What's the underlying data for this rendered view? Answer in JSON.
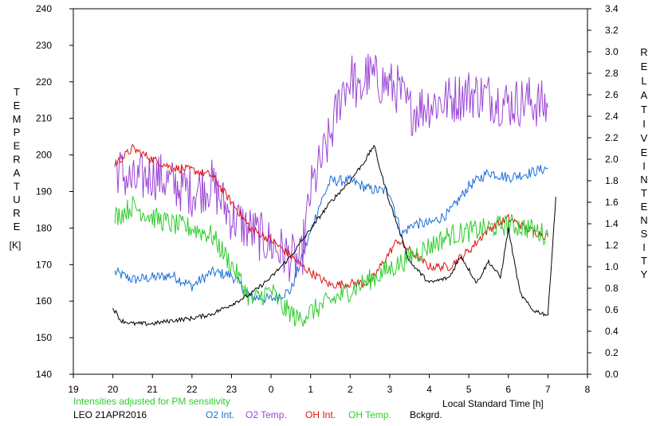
{
  "chart_data": {
    "type": "line",
    "title": "",
    "x_axis": {
      "label": "Local Standard Time [h]",
      "range": [
        19,
        32
      ],
      "tick_labels": [
        "19",
        "20",
        "21",
        "22",
        "23",
        "0",
        "1",
        "2",
        "3",
        "4",
        "5",
        "6",
        "7",
        "8"
      ]
    },
    "y_left": {
      "label_chars": [
        "T",
        "E",
        "M",
        "P",
        "E",
        "R",
        "A",
        "T",
        "U",
        "R",
        "E"
      ],
      "unit": "[K]",
      "range": [
        140,
        240
      ],
      "tick_labels": [
        "140",
        "150",
        "160",
        "170",
        "180",
        "190",
        "200",
        "210",
        "220",
        "230",
        "240"
      ]
    },
    "y_right": {
      "label_top_chars": [
        "R",
        "E",
        "L",
        "A",
        "T",
        "I",
        "V",
        "E"
      ],
      "label_bottom_chars": [
        "I",
        "N",
        "T",
        "E",
        "N",
        "S",
        "I",
        "T",
        "Y"
      ],
      "range": [
        0,
        3.4
      ],
      "tick_labels": [
        "0.0",
        "0.2",
        "0.4",
        "0.6",
        "0.8",
        "1.0",
        "1.2",
        "1.4",
        "1.6",
        "1.8",
        "2.0",
        "2.2",
        "2.4",
        "2.6",
        "2.8",
        "3.0",
        "3.2",
        "3.4"
      ]
    },
    "annotation": "Intensities adjusted for PM sensitivity",
    "station_label": "LEO 21APR2016",
    "grid": false,
    "legend_position": "bottom",
    "series": [
      {
        "name": "O2 Int.",
        "axis": "right",
        "color": "#1a6fd8",
        "noise": 0.05,
        "x": [
          20.05,
          20.5,
          21.0,
          21.5,
          22.0,
          22.5,
          23.0,
          23.5,
          24.0,
          24.5,
          24.8,
          25.2,
          25.5,
          26.0,
          26.5,
          27.0,
          27.3,
          27.6,
          28.0,
          28.5,
          29.0,
          29.5,
          30.0,
          30.5,
          31.0
        ],
        "y": [
          0.95,
          0.88,
          0.9,
          0.92,
          0.82,
          0.95,
          0.92,
          0.72,
          0.7,
          0.78,
          1.1,
          1.55,
          1.8,
          1.8,
          1.72,
          1.7,
          1.3,
          1.4,
          1.4,
          1.5,
          1.75,
          1.88,
          1.83,
          1.87,
          1.92
        ]
      },
      {
        "name": "O2 Temp.",
        "axis": "left",
        "color": "#9b45d6",
        "noise": 7,
        "x": [
          20.05,
          20.5,
          21.0,
          21.5,
          22.0,
          22.5,
          23.0,
          24.75,
          25.0,
          25.5,
          25.8,
          26.1,
          26.2,
          26.4,
          27.2,
          27.5,
          28.0,
          28.5,
          29.0,
          29.5,
          30.0,
          30.5,
          31.0
        ],
        "y": [
          197,
          192,
          195,
          192,
          190,
          192,
          183,
          170,
          190,
          205,
          218,
          222,
          215,
          222,
          218,
          212,
          214,
          215,
          217,
          216,
          214,
          215,
          213
        ]
      },
      {
        "name": "OH Int.",
        "axis": "right",
        "color": "#e01010",
        "noise": 0.04,
        "x": [
          20.05,
          20.5,
          21.0,
          21.5,
          22.0,
          22.5,
          23.0,
          23.5,
          24.0,
          24.5,
          24.8,
          25.2,
          25.5,
          26.2,
          26.5,
          27.2,
          27.5,
          28.0,
          28.5,
          29.0,
          29.5,
          30.0,
          30.5,
          31.0
        ],
        "y": [
          1.95,
          2.1,
          2.0,
          1.92,
          1.9,
          1.85,
          1.6,
          1.35,
          1.25,
          1.1,
          1.0,
          0.9,
          0.83,
          0.85,
          0.85,
          1.25,
          1.15,
          1.0,
          1.0,
          1.15,
          1.35,
          1.45,
          1.35,
          1.28
        ]
      },
      {
        "name": "OH Temp.",
        "axis": "left",
        "color": "#2ecc2e",
        "noise": 3,
        "x": [
          20.05,
          20.5,
          21.0,
          21.5,
          22.0,
          22.5,
          23.0,
          23.5,
          24.0,
          24.3,
          24.5,
          24.65,
          27.2,
          27.5,
          28.0,
          28.5,
          29.0,
          29.5,
          30.0,
          30.5,
          31.0
        ],
        "y": [
          183,
          186,
          183,
          181,
          180,
          178,
          170,
          160,
          163,
          158,
          157,
          155,
          170,
          172,
          175,
          178,
          179,
          180,
          181,
          180,
          178
        ]
      },
      {
        "name": "Bckgrd.",
        "axis": "right",
        "color": "#000000",
        "noise": 0.02,
        "x": [
          20.0,
          20.2,
          20.5,
          21.0,
          21.5,
          22.0,
          22.5,
          23.0,
          23.5,
          24.0,
          24.5,
          25.0,
          25.5,
          26.0,
          26.4,
          26.6,
          26.8,
          27.0,
          27.5,
          28.0,
          28.5,
          28.8,
          29.2,
          29.5,
          29.8,
          30.0,
          30.3,
          30.6,
          31.0,
          31.2
        ],
        "y": [
          0.62,
          0.5,
          0.47,
          0.47,
          0.5,
          0.52,
          0.56,
          0.65,
          0.75,
          0.9,
          1.1,
          1.35,
          1.6,
          1.8,
          2.0,
          2.13,
          1.85,
          1.6,
          1.05,
          0.85,
          0.9,
          1.1,
          0.85,
          1.05,
          0.9,
          1.35,
          0.75,
          0.6,
          0.55,
          1.65
        ]
      }
    ]
  }
}
